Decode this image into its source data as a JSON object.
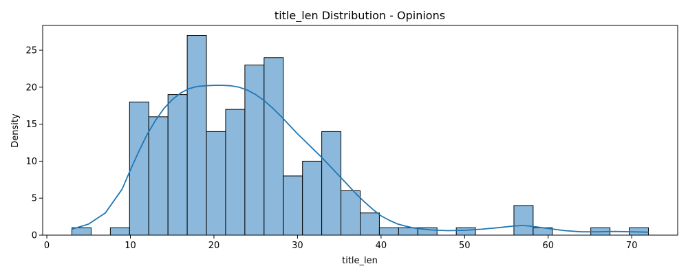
{
  "chart_data": {
    "type": "bar",
    "title": "title_len Distribution - Opinions",
    "xlabel": "title_len",
    "ylabel": "Density",
    "xlim": [
      -0.5,
      75.5
    ],
    "ylim": [
      0,
      28.35
    ],
    "xticks": [
      0,
      10,
      20,
      30,
      40,
      50,
      60,
      70
    ],
    "yticks": [
      0,
      5,
      10,
      15,
      20,
      25
    ],
    "bin_start": 3,
    "bin_width": 2.3,
    "counts": [
      1,
      0,
      1,
      18,
      16,
      19,
      27,
      14,
      17,
      23,
      24,
      8,
      10,
      14,
      6,
      3,
      1,
      1,
      1,
      0,
      1,
      0,
      0,
      4,
      1,
      0,
      0,
      1,
      0,
      1
    ],
    "kde": {
      "x": [
        3,
        5,
        7,
        9,
        10,
        11,
        12,
        13,
        14,
        15,
        16,
        17,
        18,
        19,
        20,
        21,
        22,
        23,
        24,
        25,
        26,
        27,
        28,
        29,
        30,
        31,
        32,
        33,
        34,
        35,
        36,
        37,
        38,
        39,
        40,
        41,
        42,
        43,
        44,
        46,
        48,
        50,
        52,
        54,
        56,
        57,
        58,
        60,
        62,
        64,
        66,
        68,
        70,
        72
      ],
      "y": [
        0.8,
        1.5,
        3.0,
        6.2,
        8.8,
        11.3,
        13.6,
        15.5,
        17.1,
        18.3,
        19.2,
        19.8,
        20.1,
        20.2,
        20.25,
        20.25,
        20.2,
        20.0,
        19.6,
        19.0,
        18.2,
        17.2,
        16.1,
        14.9,
        13.7,
        12.6,
        11.5,
        10.4,
        9.2,
        8.0,
        6.8,
        5.6,
        4.5,
        3.5,
        2.6,
        2.0,
        1.5,
        1.2,
        0.95,
        0.7,
        0.6,
        0.65,
        0.8,
        1.0,
        1.25,
        1.3,
        1.2,
        0.9,
        0.6,
        0.45,
        0.45,
        0.5,
        0.45,
        0.4
      ]
    },
    "grid": false,
    "colors": {
      "bar_fill": "#8cb9db",
      "bar_edge": "#000000",
      "kde_line": "#1f77b4",
      "axis": "#000000"
    }
  }
}
